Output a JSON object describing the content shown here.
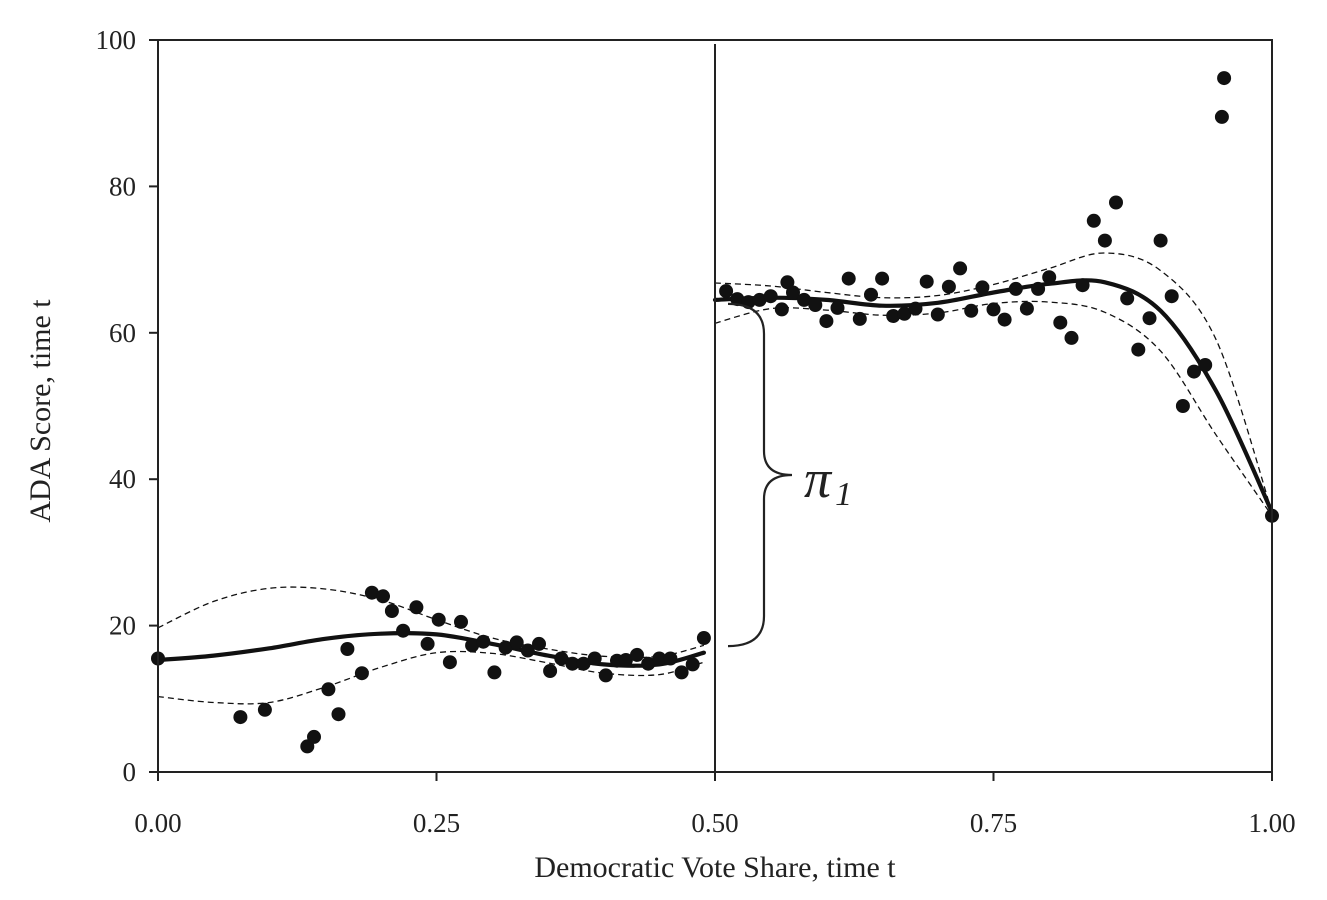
{
  "chart_data": {
    "type": "scatter",
    "title": "",
    "xlabel": "Democratic Vote Share, time t",
    "ylabel": "ADA Score, time t",
    "xlim": [
      0,
      1
    ],
    "ylim": [
      0,
      100
    ],
    "x_ticks": [
      "0.00",
      "0.25",
      "0.50",
      "0.75",
      "1.00"
    ],
    "y_ticks": [
      "0",
      "20",
      "40",
      "60",
      "80",
      "100"
    ],
    "cutoff": 0.5,
    "annotation": {
      "symbol": "π",
      "subscript": "1"
    },
    "colors": {
      "ink": "#111111",
      "axis": "#222222"
    },
    "points": [
      [
        0.0,
        15.5
      ],
      [
        0.074,
        7.5
      ],
      [
        0.096,
        8.5
      ],
      [
        0.134,
        3.5
      ],
      [
        0.14,
        4.8
      ],
      [
        0.153,
        11.3
      ],
      [
        0.162,
        7.9
      ],
      [
        0.17,
        16.8
      ],
      [
        0.183,
        13.5
      ],
      [
        0.192,
        24.5
      ],
      [
        0.202,
        24.0
      ],
      [
        0.21,
        22.0
      ],
      [
        0.22,
        19.3
      ],
      [
        0.232,
        22.5
      ],
      [
        0.242,
        17.5
      ],
      [
        0.252,
        20.8
      ],
      [
        0.262,
        15.0
      ],
      [
        0.272,
        20.5
      ],
      [
        0.282,
        17.3
      ],
      [
        0.292,
        17.8
      ],
      [
        0.302,
        13.6
      ],
      [
        0.312,
        17.0
      ],
      [
        0.322,
        17.7
      ],
      [
        0.332,
        16.6
      ],
      [
        0.342,
        17.5
      ],
      [
        0.352,
        13.8
      ],
      [
        0.362,
        15.5
      ],
      [
        0.372,
        14.8
      ],
      [
        0.382,
        14.8
      ],
      [
        0.392,
        15.5
      ],
      [
        0.402,
        13.2
      ],
      [
        0.412,
        15.2
      ],
      [
        0.42,
        15.3
      ],
      [
        0.43,
        16.0
      ],
      [
        0.44,
        14.8
      ],
      [
        0.45,
        15.5
      ],
      [
        0.46,
        15.5
      ],
      [
        0.47,
        13.6
      ],
      [
        0.48,
        14.7
      ],
      [
        0.49,
        18.3
      ],
      [
        0.51,
        65.7
      ],
      [
        0.52,
        64.6
      ],
      [
        0.53,
        64.2
      ],
      [
        0.54,
        64.5
      ],
      [
        0.55,
        65.0
      ],
      [
        0.56,
        63.2
      ],
      [
        0.565,
        66.9
      ],
      [
        0.57,
        65.5
      ],
      [
        0.58,
        64.5
      ],
      [
        0.59,
        63.8
      ],
      [
        0.6,
        61.6
      ],
      [
        0.61,
        63.4
      ],
      [
        0.62,
        67.4
      ],
      [
        0.63,
        61.9
      ],
      [
        0.64,
        65.2
      ],
      [
        0.65,
        67.4
      ],
      [
        0.66,
        62.3
      ],
      [
        0.67,
        62.6
      ],
      [
        0.68,
        63.3
      ],
      [
        0.69,
        67.0
      ],
      [
        0.7,
        62.5
      ],
      [
        0.71,
        66.3
      ],
      [
        0.72,
        68.8
      ],
      [
        0.73,
        63.0
      ],
      [
        0.74,
        66.2
      ],
      [
        0.75,
        63.2
      ],
      [
        0.76,
        61.8
      ],
      [
        0.77,
        66.0
      ],
      [
        0.78,
        63.3
      ],
      [
        0.79,
        66.0
      ],
      [
        0.8,
        67.6
      ],
      [
        0.81,
        61.4
      ],
      [
        0.82,
        59.3
      ],
      [
        0.83,
        66.5
      ],
      [
        0.84,
        75.3
      ],
      [
        0.85,
        72.6
      ],
      [
        0.86,
        77.8
      ],
      [
        0.87,
        64.7
      ],
      [
        0.88,
        57.7
      ],
      [
        0.89,
        62.0
      ],
      [
        0.9,
        72.6
      ],
      [
        0.91,
        65.0
      ],
      [
        0.92,
        50.0
      ],
      [
        0.93,
        54.7
      ],
      [
        0.94,
        55.6
      ],
      [
        0.955,
        89.5
      ],
      [
        0.957,
        94.8
      ],
      [
        1.0,
        35.0
      ]
    ],
    "series": [
      {
        "name": "fit-left",
        "style": "solid",
        "x": [
          0.0,
          0.05,
          0.1,
          0.15,
          0.2,
          0.25,
          0.3,
          0.35,
          0.4,
          0.45,
          0.49
        ],
        "values": [
          15.3,
          15.9,
          16.9,
          18.2,
          18.9,
          18.8,
          17.5,
          15.9,
          14.7,
          14.7,
          16.3
        ]
      },
      {
        "name": "fit-right",
        "style": "solid",
        "x": [
          0.5,
          0.55,
          0.6,
          0.65,
          0.7,
          0.75,
          0.8,
          0.85,
          0.9,
          0.95,
          1.0
        ],
        "values": [
          64.5,
          64.8,
          64.5,
          63.7,
          64.1,
          65.5,
          66.7,
          66.9,
          63.0,
          52.0,
          35.5
        ]
      },
      {
        "name": "ci-upper-left",
        "style": "dashed",
        "x": [
          0.0,
          0.05,
          0.1,
          0.15,
          0.2,
          0.25,
          0.3,
          0.35,
          0.4,
          0.45,
          0.49
        ],
        "values": [
          19.7,
          23.3,
          25.1,
          25.0,
          23.5,
          20.8,
          18.3,
          16.8,
          15.8,
          15.8,
          17.3
        ]
      },
      {
        "name": "ci-lower-left",
        "style": "dashed",
        "x": [
          0.0,
          0.05,
          0.1,
          0.15,
          0.2,
          0.25,
          0.3,
          0.35,
          0.4,
          0.45,
          0.49
        ],
        "values": [
          10.3,
          9.5,
          9.5,
          11.6,
          14.3,
          16.3,
          16.2,
          14.9,
          13.5,
          13.3,
          15.0
        ]
      },
      {
        "name": "ci-upper-right",
        "style": "dashed",
        "x": [
          0.5,
          0.55,
          0.6,
          0.65,
          0.7,
          0.75,
          0.8,
          0.85,
          0.9,
          0.95,
          1.0
        ],
        "values": [
          66.8,
          66.4,
          65.5,
          64.8,
          65.1,
          66.6,
          68.8,
          70.9,
          68.5,
          59.0,
          35.5
        ]
      },
      {
        "name": "ci-lower-right",
        "style": "dashed",
        "x": [
          0.5,
          0.55,
          0.6,
          0.65,
          0.7,
          0.75,
          0.8,
          0.85,
          0.9,
          0.95,
          1.0
        ],
        "values": [
          61.3,
          63.3,
          63.1,
          62.4,
          62.7,
          64.0,
          64.2,
          62.8,
          57.5,
          46.0,
          35.0
        ]
      }
    ]
  }
}
